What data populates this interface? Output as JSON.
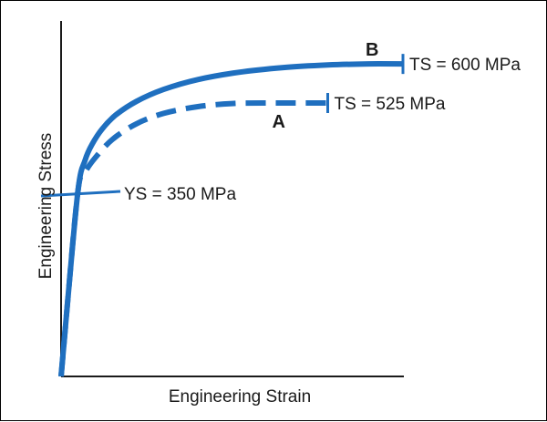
{
  "chart_data": {
    "type": "line",
    "title": "",
    "xlabel": "Engineering Strain",
    "ylabel": "Engineering Stress",
    "xlim": [
      0,
      1
    ],
    "ylim": [
      0,
      700
    ],
    "grid": false,
    "colors": {
      "curve": "#1f6fbf",
      "axis": "#1a1a1a",
      "text": "#1a1a1a"
    },
    "series": [
      {
        "name": "B",
        "style": "solid",
        "tensile_strength_label": "TS = 600 MPa",
        "x": [
          0,
          0.02,
          0.05,
          0.07,
          0.09,
          0.12,
          0.16,
          0.22,
          0.3,
          0.4,
          0.52,
          0.65,
          0.78,
          0.9,
          1.0
        ],
        "y": [
          0,
          150,
          360,
          415,
          445,
          475,
          502,
          528,
          551,
          570,
          584,
          593,
          598,
          600,
          600
        ]
      },
      {
        "name": "A",
        "style": "dashed",
        "tensile_strength_label": "TS = 525 MPa",
        "x": [
          0,
          0.02,
          0.05,
          0.07,
          0.1,
          0.15,
          0.22,
          0.3,
          0.4,
          0.5,
          0.59,
          0.65,
          0.7,
          0.78
        ],
        "y": [
          0,
          150,
          360,
          392,
          420,
          455,
          485,
          505,
          518,
          524,
          525,
          525,
          525,
          525
        ]
      }
    ],
    "annotations": {
      "yield_strength": {
        "label": "YS = 350 MPa",
        "y": 350
      }
    }
  }
}
